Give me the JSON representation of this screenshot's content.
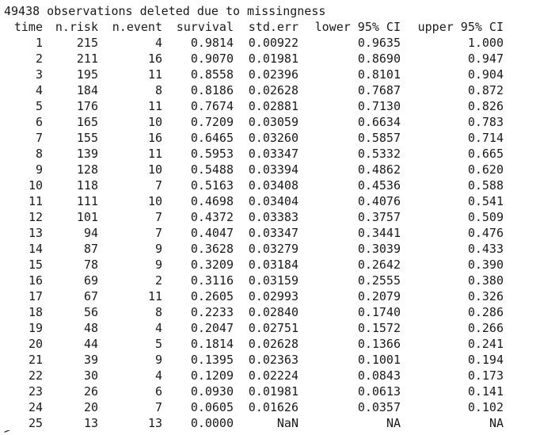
{
  "message": "49438 observations deleted due to missingness",
  "headers": [
    "time",
    "n.risk",
    "n.event",
    "survival",
    "std.err",
    "lower 95% CI",
    "upper 95% CI"
  ],
  "rows": [
    [
      "1",
      "215",
      "4",
      "0.9814",
      "0.00922",
      "0.9635",
      "1.000"
    ],
    [
      "2",
      "211",
      "16",
      "0.9070",
      "0.01981",
      "0.8690",
      "0.947"
    ],
    [
      "3",
      "195",
      "11",
      "0.8558",
      "0.02396",
      "0.8101",
      "0.904"
    ],
    [
      "4",
      "184",
      "8",
      "0.8186",
      "0.02628",
      "0.7687",
      "0.872"
    ],
    [
      "5",
      "176",
      "11",
      "0.7674",
      "0.02881",
      "0.7130",
      "0.826"
    ],
    [
      "6",
      "165",
      "10",
      "0.7209",
      "0.03059",
      "0.6634",
      "0.783"
    ],
    [
      "7",
      "155",
      "16",
      "0.6465",
      "0.03260",
      "0.5857",
      "0.714"
    ],
    [
      "8",
      "139",
      "11",
      "0.5953",
      "0.03347",
      "0.5332",
      "0.665"
    ],
    [
      "9",
      "128",
      "10",
      "0.5488",
      "0.03394",
      "0.4862",
      "0.620"
    ],
    [
      "10",
      "118",
      "7",
      "0.5163",
      "0.03408",
      "0.4536",
      "0.588"
    ],
    [
      "11",
      "111",
      "10",
      "0.4698",
      "0.03404",
      "0.4076",
      "0.541"
    ],
    [
      "12",
      "101",
      "7",
      "0.4372",
      "0.03383",
      "0.3757",
      "0.509"
    ],
    [
      "13",
      "94",
      "7",
      "0.4047",
      "0.03347",
      "0.3441",
      "0.476"
    ],
    [
      "14",
      "87",
      "9",
      "0.3628",
      "0.03279",
      "0.3039",
      "0.433"
    ],
    [
      "15",
      "78",
      "9",
      "0.3209",
      "0.03184",
      "0.2642",
      "0.390"
    ],
    [
      "16",
      "69",
      "2",
      "0.3116",
      "0.03159",
      "0.2555",
      "0.380"
    ],
    [
      "17",
      "67",
      "11",
      "0.2605",
      "0.02993",
      "0.2079",
      "0.326"
    ],
    [
      "18",
      "56",
      "8",
      "0.2233",
      "0.02840",
      "0.1740",
      "0.286"
    ],
    [
      "19",
      "48",
      "4",
      "0.2047",
      "0.02751",
      "0.1572",
      "0.266"
    ],
    [
      "20",
      "44",
      "5",
      "0.1814",
      "0.02628",
      "0.1366",
      "0.241"
    ],
    [
      "21",
      "39",
      "9",
      "0.1395",
      "0.02363",
      "0.1001",
      "0.194"
    ],
    [
      "22",
      "30",
      "4",
      "0.1209",
      "0.02224",
      "0.0843",
      "0.173"
    ],
    [
      "23",
      "26",
      "6",
      "0.0930",
      "0.01981",
      "0.0613",
      "0.141"
    ],
    [
      "24",
      "20",
      "7",
      "0.0605",
      "0.01626",
      "0.0357",
      "0.102"
    ],
    [
      "25",
      "13",
      "13",
      "0.0000",
      "NaN",
      "NA",
      "NA"
    ]
  ]
}
